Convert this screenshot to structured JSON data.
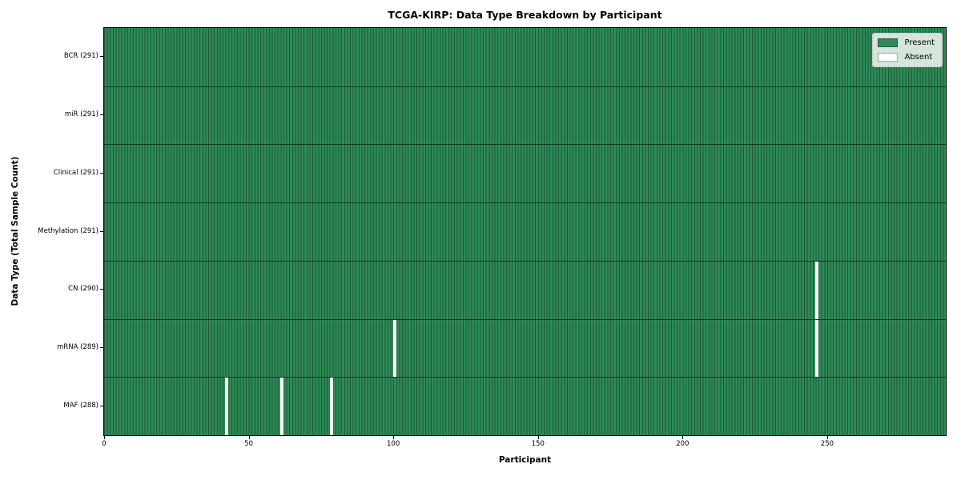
{
  "chart_data": {
    "type": "heatmap",
    "title": "TCGA-KIRP: Data Type Breakdown by Participant",
    "xlabel": "Participant",
    "ylabel": "Data Type (Total Sample Count)",
    "x_ticks": [
      0,
      50,
      100,
      150,
      200,
      250
    ],
    "x_range": [
      0,
      291
    ],
    "n_participants": 291,
    "grid": false,
    "legend_position": "upper-right",
    "legend": [
      {
        "label": "Present",
        "color": "#2e8b57"
      },
      {
        "label": "Absent",
        "color": "#ffffff"
      }
    ],
    "rows": [
      {
        "label": "BCR (291)",
        "data_type": "BCR",
        "total_samples": 291,
        "absent_participants": []
      },
      {
        "label": "miR (291)",
        "data_type": "miR",
        "total_samples": 291,
        "absent_participants": []
      },
      {
        "label": "Clinical (291)",
        "data_type": "Clinical",
        "total_samples": 291,
        "absent_participants": []
      },
      {
        "label": "Methylation (291)",
        "data_type": "Methylation",
        "total_samples": 291,
        "absent_participants": []
      },
      {
        "label": "CN (290)",
        "data_type": "CN",
        "total_samples": 290,
        "absent_participants": [
          246
        ]
      },
      {
        "label": "mRNA (289)",
        "data_type": "mRNA",
        "total_samples": 289,
        "absent_participants": [
          100,
          246
        ]
      },
      {
        "label": "MAF (288)",
        "data_type": "MAF",
        "total_samples": 288,
        "absent_participants": [
          42,
          61,
          78
        ]
      }
    ],
    "colors": {
      "present": "#2e8b57",
      "cell_edge": "#1f5737",
      "absent": "#ffffff",
      "row_separator": "#000000",
      "spine": "#000000"
    }
  }
}
